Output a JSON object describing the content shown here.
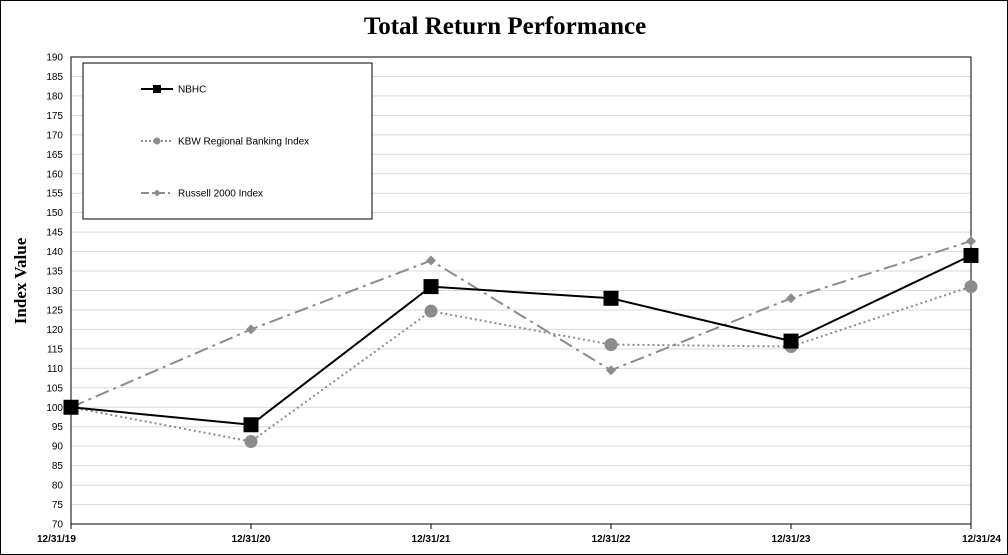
{
  "chart_data": {
    "type": "line",
    "title": "Total Return Performance",
    "ylabel": "Index Value",
    "xlabel": "",
    "x": [
      "12/31/19",
      "12/31/20",
      "12/31/21",
      "12/31/22",
      "12/31/23",
      "12/31/24"
    ],
    "ylim": [
      70,
      190
    ],
    "ytick_step": 5,
    "grid": true,
    "legend_position": "top-left",
    "series": [
      {
        "name": "NBHC",
        "values": [
          100,
          95.5,
          131,
          128,
          117,
          139
        ],
        "color": "#000000",
        "marker": "square",
        "line_style": "solid"
      },
      {
        "name": "KBW Regional Banking Index",
        "values": [
          100,
          91.2,
          124.7,
          116.1,
          115.6,
          131
        ],
        "color": "#8c8c8c",
        "marker": "circle",
        "line_style": "dotted"
      },
      {
        "name": "Russell 2000 Index",
        "values": [
          100,
          120,
          137.7,
          109.5,
          128,
          142.7
        ],
        "color": "#8c8c8c",
        "marker": "diamond",
        "line_style": "dash-dot"
      }
    ]
  }
}
